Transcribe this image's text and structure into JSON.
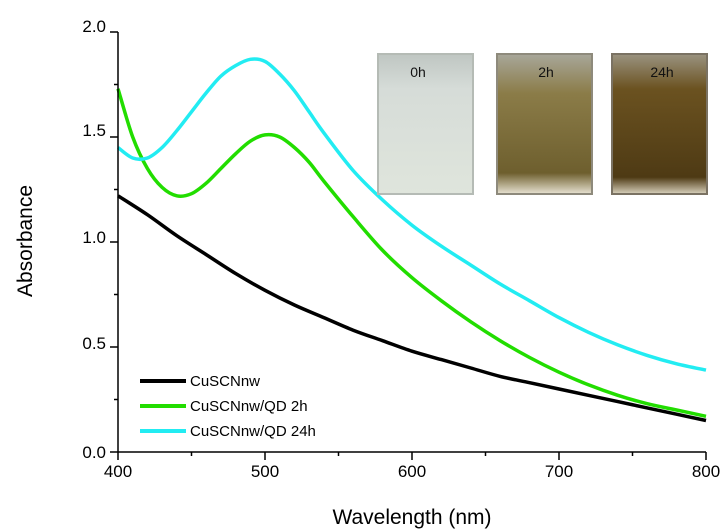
{
  "chart_data": {
    "type": "line",
    "title": "",
    "xlabel": "Wavelength (nm)",
    "ylabel": "Absorbance",
    "xlim": [
      400,
      800
    ],
    "ylim": [
      0.0,
      2.0
    ],
    "x_ticks": [
      "400",
      "500",
      "600",
      "700",
      "800"
    ],
    "y_ticks": [
      "0.0",
      "0.5",
      "1.0",
      "1.5",
      "2.0"
    ],
    "grid": false,
    "legend_position": "bottom-left",
    "series": [
      {
        "name": "CuSCNnw",
        "color": "#000000",
        "points": [
          [
            400,
            1.22
          ],
          [
            420,
            1.13
          ],
          [
            440,
            1.03
          ],
          [
            460,
            0.94
          ],
          [
            480,
            0.85
          ],
          [
            500,
            0.77
          ],
          [
            520,
            0.7
          ],
          [
            540,
            0.64
          ],
          [
            560,
            0.58
          ],
          [
            580,
            0.53
          ],
          [
            600,
            0.48
          ],
          [
            620,
            0.44
          ],
          [
            640,
            0.4
          ],
          [
            660,
            0.36
          ],
          [
            680,
            0.33
          ],
          [
            700,
            0.3
          ],
          [
            720,
            0.27
          ],
          [
            740,
            0.24
          ],
          [
            760,
            0.21
          ],
          [
            780,
            0.18
          ],
          [
            800,
            0.15
          ]
        ]
      },
      {
        "name": "CuSCNnw/QD 2h",
        "color": "#22dd00",
        "points": [
          [
            400,
            1.73
          ],
          [
            410,
            1.5
          ],
          [
            420,
            1.35
          ],
          [
            430,
            1.26
          ],
          [
            440,
            1.22
          ],
          [
            450,
            1.23
          ],
          [
            460,
            1.28
          ],
          [
            470,
            1.35
          ],
          [
            480,
            1.42
          ],
          [
            490,
            1.48
          ],
          [
            500,
            1.51
          ],
          [
            510,
            1.5
          ],
          [
            520,
            1.45
          ],
          [
            530,
            1.38
          ],
          [
            540,
            1.29
          ],
          [
            560,
            1.12
          ],
          [
            580,
            0.96
          ],
          [
            600,
            0.83
          ],
          [
            620,
            0.72
          ],
          [
            640,
            0.62
          ],
          [
            660,
            0.53
          ],
          [
            680,
            0.45
          ],
          [
            700,
            0.38
          ],
          [
            720,
            0.32
          ],
          [
            740,
            0.27
          ],
          [
            760,
            0.23
          ],
          [
            780,
            0.2
          ],
          [
            800,
            0.17
          ]
        ]
      },
      {
        "name": "CuSCNnw/QD 24h",
        "color": "#22ecf2",
        "points": [
          [
            400,
            1.45
          ],
          [
            410,
            1.4
          ],
          [
            420,
            1.4
          ],
          [
            430,
            1.45
          ],
          [
            440,
            1.53
          ],
          [
            450,
            1.62
          ],
          [
            460,
            1.71
          ],
          [
            470,
            1.79
          ],
          [
            480,
            1.84
          ],
          [
            490,
            1.87
          ],
          [
            500,
            1.86
          ],
          [
            510,
            1.8
          ],
          [
            520,
            1.72
          ],
          [
            530,
            1.62
          ],
          [
            540,
            1.52
          ],
          [
            560,
            1.34
          ],
          [
            580,
            1.2
          ],
          [
            600,
            1.08
          ],
          [
            620,
            0.98
          ],
          [
            640,
            0.89
          ],
          [
            660,
            0.8
          ],
          [
            680,
            0.72
          ],
          [
            700,
            0.64
          ],
          [
            720,
            0.57
          ],
          [
            740,
            0.51
          ],
          [
            760,
            0.46
          ],
          [
            780,
            0.42
          ],
          [
            800,
            0.39
          ]
        ]
      }
    ]
  },
  "inset_photos": [
    {
      "label": "0h",
      "color": "#d9e0d5"
    },
    {
      "label": "2h",
      "color": "#7a6a36"
    },
    {
      "label": "24h",
      "color": "#5a4318"
    }
  ]
}
